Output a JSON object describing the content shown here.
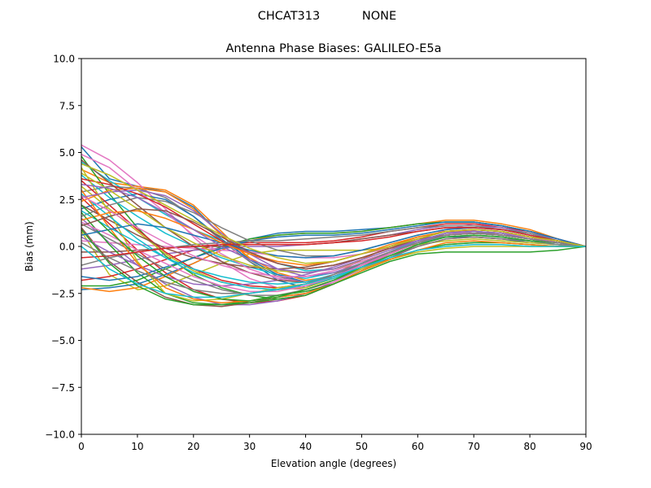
{
  "chart_data": {
    "type": "line",
    "suptitle_left": "CHCAT313",
    "suptitle_right": "NONE",
    "title": "Antenna Phase Biases: GALILEO-E5a",
    "xlabel": "Elevation angle (degrees)",
    "ylabel": "Bias (mm)",
    "xlim": [
      0,
      90
    ],
    "ylim": [
      -10,
      10
    ],
    "x_ticks": [
      "0",
      "10",
      "20",
      "30",
      "40",
      "50",
      "60",
      "70",
      "80",
      "90"
    ],
    "y_ticks": [
      "10.0",
      "7.5",
      "5.0",
      "2.5",
      "0.0",
      "−2.5",
      "−5.0",
      "−7.5",
      "−10.0"
    ],
    "grid": false,
    "legend": "none",
    "x": [
      0,
      5,
      10,
      15,
      20,
      25,
      30,
      35,
      40,
      45,
      50,
      55,
      60,
      65,
      70,
      75,
      80,
      85,
      90
    ],
    "series": [
      {
        "color": "#1f77b4",
        "values": [
          5.3,
          3.6,
          3.2,
          2.9,
          2.1,
          0.6,
          -0.8,
          -1.8,
          -2.2,
          -1.6,
          -0.9,
          -0.3,
          0.2,
          0.5,
          0.5,
          0.4,
          0.2,
          0.1,
          0.0
        ]
      },
      {
        "color": "#ff7f0e",
        "values": [
          4.1,
          3.4,
          3.2,
          3.0,
          2.2,
          0.8,
          -0.7,
          -1.5,
          -1.9,
          -1.5,
          -0.7,
          0.0,
          0.5,
          0.8,
          0.8,
          0.6,
          0.4,
          0.2,
          0.0
        ]
      },
      {
        "color": "#2ca02c",
        "values": [
          4.8,
          2.8,
          1.0,
          -0.5,
          -1.5,
          -2.2,
          -2.6,
          -2.8,
          -2.6,
          -2.0,
          -1.3,
          -0.7,
          -0.2,
          0.1,
          0.2,
          0.2,
          0.1,
          0.0,
          0.0
        ]
      },
      {
        "color": "#d62728",
        "values": [
          2.6,
          1.2,
          -0.2,
          -1.4,
          -2.3,
          -2.8,
          -3.0,
          -2.9,
          -2.6,
          -2.0,
          -1.3,
          -0.6,
          0.0,
          0.4,
          0.5,
          0.4,
          0.3,
          0.1,
          0.0
        ]
      },
      {
        "color": "#9467bd",
        "values": [
          1.5,
          0.2,
          -1.0,
          -2.0,
          -2.7,
          -3.1,
          -3.1,
          -2.9,
          -2.5,
          -1.9,
          -1.1,
          -0.4,
          0.2,
          0.6,
          0.7,
          0.6,
          0.4,
          0.2,
          0.0
        ]
      },
      {
        "color": "#8c564b",
        "values": [
          1.0,
          -0.8,
          -1.9,
          -2.7,
          -3.1,
          -3.2,
          -3.0,
          -2.7,
          -2.5,
          -2.0,
          -1.3,
          -0.6,
          0.1,
          0.6,
          0.8,
          0.7,
          0.5,
          0.2,
          0.0
        ]
      },
      {
        "color": "#e377c2",
        "values": [
          5.4,
          4.6,
          3.4,
          2.0,
          0.5,
          -0.8,
          -1.7,
          -2.2,
          -2.3,
          -1.9,
          -1.2,
          -0.4,
          0.3,
          0.9,
          1.2,
          1.1,
          0.8,
          0.4,
          0.0
        ]
      },
      {
        "color": "#7f7f7f",
        "values": [
          2.9,
          3.2,
          3.1,
          2.6,
          1.6,
          0.3,
          -0.8,
          -1.6,
          -1.9,
          -1.6,
          -1.0,
          -0.3,
          0.3,
          0.7,
          0.8,
          0.6,
          0.4,
          0.2,
          0.0
        ]
      },
      {
        "color": "#bcbd22",
        "values": [
          0.8,
          -1.5,
          -2.3,
          -2.1,
          -1.5,
          -0.9,
          -0.4,
          -0.2,
          -0.2,
          -0.2,
          -0.2,
          -0.1,
          0.1,
          0.3,
          0.4,
          0.3,
          0.2,
          0.1,
          0.0
        ]
      },
      {
        "color": "#17becf",
        "values": [
          4.5,
          3.5,
          2.6,
          1.7,
          0.9,
          0.3,
          -0.3,
          -0.9,
          -1.3,
          -1.2,
          -0.8,
          -0.3,
          0.2,
          0.5,
          0.6,
          0.5,
          0.3,
          0.1,
          0.0
        ]
      },
      {
        "color": "#1f77b4",
        "values": [
          -2.3,
          -2.2,
          -2.0,
          -1.5,
          -0.9,
          -0.2,
          0.4,
          0.7,
          0.8,
          0.8,
          0.9,
          1.0,
          1.2,
          1.3,
          1.3,
          1.1,
          0.8,
          0.4,
          0.0
        ]
      },
      {
        "color": "#ff7f0e",
        "values": [
          -2.2,
          -2.4,
          -2.2,
          -1.6,
          -0.9,
          -0.2,
          0.3,
          0.6,
          0.7,
          0.7,
          0.8,
          1.0,
          1.2,
          1.4,
          1.4,
          1.2,
          0.9,
          0.4,
          0.0
        ]
      },
      {
        "color": "#2ca02c",
        "values": [
          -2.1,
          -2.1,
          -1.8,
          -1.2,
          -0.6,
          0.0,
          0.4,
          0.6,
          0.7,
          0.7,
          0.8,
          1.0,
          1.2,
          1.3,
          1.3,
          1.1,
          0.8,
          0.4,
          0.0
        ]
      },
      {
        "color": "#d62728",
        "values": [
          -1.8,
          -1.6,
          -1.2,
          -0.7,
          -0.2,
          0.1,
          0.2,
          0.2,
          0.2,
          0.3,
          0.5,
          0.8,
          1.0,
          1.2,
          1.2,
          1.0,
          0.8,
          0.4,
          0.0
        ]
      },
      {
        "color": "#9467bd",
        "values": [
          -1.2,
          -1.0,
          -0.7,
          -0.4,
          -0.2,
          -0.1,
          0.0,
          0.0,
          0.1,
          0.2,
          0.4,
          0.6,
          0.9,
          1.1,
          1.1,
          1.0,
          0.7,
          0.4,
          0.0
        ]
      },
      {
        "color": "#8c564b",
        "values": [
          -0.3,
          -0.3,
          -0.2,
          -0.1,
          0.0,
          0.0,
          0.1,
          0.1,
          0.1,
          0.2,
          0.4,
          0.6,
          0.8,
          1.0,
          1.0,
          0.9,
          0.7,
          0.3,
          0.0
        ]
      },
      {
        "color": "#e377c2",
        "values": [
          0.3,
          0.2,
          0.1,
          0.0,
          -0.1,
          -0.2,
          -0.3,
          -0.5,
          -0.6,
          -0.6,
          -0.4,
          -0.1,
          0.3,
          0.6,
          0.7,
          0.6,
          0.4,
          0.2,
          0.0
        ]
      },
      {
        "color": "#7f7f7f",
        "values": [
          1.2,
          0.4,
          -0.4,
          -1.2,
          -1.8,
          -2.3,
          -2.6,
          -2.6,
          -2.3,
          -1.8,
          -1.2,
          -0.6,
          0.0,
          0.4,
          0.5,
          0.4,
          0.3,
          0.1,
          0.0
        ]
      },
      {
        "color": "#bcbd22",
        "values": [
          3.2,
          2.0,
          0.8,
          -0.4,
          -1.3,
          -1.9,
          -2.2,
          -2.3,
          -2.2,
          -1.7,
          -1.1,
          -0.5,
          0.1,
          0.5,
          0.6,
          0.5,
          0.3,
          0.2,
          0.0
        ]
      },
      {
        "color": "#17becf",
        "values": [
          3.8,
          2.6,
          1.6,
          0.7,
          0.0,
          -0.6,
          -1.1,
          -1.5,
          -1.7,
          -1.4,
          -0.9,
          -0.3,
          0.2,
          0.6,
          0.7,
          0.6,
          0.4,
          0.2,
          0.0
        ]
      },
      {
        "color": "#1f77b4",
        "values": [
          2.0,
          2.5,
          2.8,
          2.5,
          1.6,
          0.4,
          -0.7,
          -1.5,
          -1.9,
          -1.6,
          -1.0,
          -0.4,
          0.2,
          0.6,
          0.7,
          0.6,
          0.4,
          0.2,
          0.0
        ]
      },
      {
        "color": "#ff7f0e",
        "values": [
          2.4,
          3.0,
          3.1,
          2.9,
          2.0,
          0.6,
          -0.6,
          -1.4,
          -1.8,
          -1.6,
          -1.0,
          -0.4,
          0.2,
          0.6,
          0.7,
          0.6,
          0.4,
          0.2,
          0.0
        ]
      },
      {
        "color": "#2ca02c",
        "values": [
          1.8,
          0.1,
          -1.4,
          -2.5,
          -3.0,
          -3.1,
          -2.9,
          -2.6,
          -2.4,
          -2.0,
          -1.3,
          -0.7,
          -0.2,
          0.1,
          0.2,
          0.2,
          0.1,
          0.0,
          0.0
        ]
      },
      {
        "color": "#d62728",
        "values": [
          3.5,
          2.2,
          0.9,
          -0.3,
          -1.2,
          -1.8,
          -2.1,
          -2.2,
          -2.0,
          -1.6,
          -1.0,
          -0.4,
          0.2,
          0.6,
          0.7,
          0.6,
          0.4,
          0.2,
          0.0
        ]
      },
      {
        "color": "#9467bd",
        "values": [
          0.5,
          -0.3,
          -1.0,
          -1.6,
          -2.0,
          -2.1,
          -2.0,
          -1.8,
          -1.5,
          -1.1,
          -0.6,
          -0.1,
          0.3,
          0.6,
          0.7,
          0.6,
          0.4,
          0.2,
          0.0
        ]
      },
      {
        "color": "#8c564b",
        "values": [
          2.2,
          1.4,
          0.6,
          -0.1,
          -0.6,
          -0.9,
          -1.1,
          -1.2,
          -1.1,
          -0.8,
          -0.4,
          0.0,
          0.4,
          0.6,
          0.7,
          0.6,
          0.4,
          0.2,
          0.0
        ]
      },
      {
        "color": "#e377c2",
        "values": [
          4.9,
          4.2,
          3.0,
          1.8,
          0.6,
          -0.4,
          -1.2,
          -1.7,
          -1.9,
          -1.6,
          -1.0,
          -0.3,
          0.3,
          0.7,
          0.9,
          0.8,
          0.5,
          0.3,
          0.0
        ]
      },
      {
        "color": "#7f7f7f",
        "values": [
          1.6,
          2.2,
          2.6,
          2.4,
          1.8,
          1.0,
          0.3,
          -0.2,
          -0.5,
          -0.5,
          -0.2,
          0.2,
          0.6,
          0.9,
          1.0,
          0.9,
          0.6,
          0.3,
          0.0
        ]
      },
      {
        "color": "#bcbd22",
        "values": [
          4.2,
          1.8,
          -0.8,
          -2.5,
          -2.9,
          -2.8,
          -2.5,
          -2.2,
          -2.0,
          -1.7,
          -1.2,
          -0.7,
          -0.3,
          -0.1,
          0.0,
          0.0,
          0.0,
          0.0,
          0.0
        ]
      },
      {
        "color": "#17becf",
        "values": [
          2.8,
          1.6,
          0.4,
          -0.6,
          -1.4,
          -1.9,
          -2.2,
          -2.3,
          -2.1,
          -1.7,
          -1.1,
          -0.5,
          0.1,
          0.5,
          0.6,
          0.5,
          0.3,
          0.2,
          0.0
        ]
      },
      {
        "color": "#1f77b4",
        "values": [
          -1.6,
          -1.8,
          -1.6,
          -1.1,
          -0.6,
          -0.1,
          0.3,
          0.5,
          0.6,
          0.6,
          0.7,
          0.9,
          1.1,
          1.3,
          1.3,
          1.1,
          0.8,
          0.4,
          0.0
        ]
      },
      {
        "color": "#ff7f0e",
        "values": [
          3.0,
          1.0,
          -0.9,
          -2.2,
          -2.8,
          -3.0,
          -2.9,
          -2.7,
          -2.5,
          -2.0,
          -1.3,
          -0.7,
          -0.2,
          0.2,
          0.3,
          0.2,
          0.1,
          0.0,
          0.0
        ]
      },
      {
        "color": "#2ca02c",
        "values": [
          0.9,
          -0.9,
          -2.1,
          -2.8,
          -3.1,
          -3.1,
          -3.0,
          -2.8,
          -2.6,
          -2.0,
          -1.4,
          -0.8,
          -0.4,
          -0.3,
          -0.3,
          -0.3,
          -0.3,
          -0.2,
          0.0
        ]
      },
      {
        "color": "#d62728",
        "values": [
          3.6,
          3.3,
          2.8,
          2.1,
          1.2,
          0.3,
          -0.4,
          -0.9,
          -1.2,
          -1.0,
          -0.6,
          -0.1,
          0.4,
          0.8,
          0.9,
          0.8,
          0.5,
          0.3,
          0.0
        ]
      },
      {
        "color": "#9467bd",
        "values": [
          2.6,
          2.9,
          3.0,
          2.7,
          1.9,
          0.7,
          -0.4,
          -1.2,
          -1.6,
          -1.4,
          -0.9,
          -0.3,
          0.3,
          0.7,
          0.8,
          0.7,
          0.4,
          0.2,
          0.0
        ]
      },
      {
        "color": "#8c564b",
        "values": [
          4.6,
          3.4,
          2.2,
          1.0,
          0.0,
          -0.8,
          -1.4,
          -1.8,
          -1.9,
          -1.6,
          -1.0,
          -0.4,
          0.2,
          0.6,
          0.7,
          0.6,
          0.4,
          0.2,
          0.0
        ]
      },
      {
        "color": "#e377c2",
        "values": [
          1.3,
          0.6,
          -0.2,
          -0.9,
          -1.6,
          -2.1,
          -2.4,
          -2.4,
          -2.1,
          -1.6,
          -1.0,
          -0.4,
          0.2,
          0.6,
          0.8,
          0.7,
          0.5,
          0.2,
          0.0
        ]
      },
      {
        "color": "#7f7f7f",
        "values": [
          -1.0,
          -0.6,
          -0.3,
          -0.1,
          0.1,
          0.2,
          0.3,
          0.3,
          0.4,
          0.5,
          0.6,
          0.8,
          1.0,
          1.1,
          1.1,
          0.9,
          0.7,
          0.3,
          0.0
        ]
      },
      {
        "color": "#bcbd22",
        "values": [
          3.9,
          3.0,
          2.0,
          1.0,
          0.2,
          -0.5,
          -1.0,
          -1.3,
          -1.4,
          -1.2,
          -0.8,
          -0.3,
          0.2,
          0.6,
          0.7,
          0.6,
          0.4,
          0.2,
          0.0
        ]
      },
      {
        "color": "#17becf",
        "values": [
          1.9,
          1.0,
          0.2,
          -0.6,
          -1.2,
          -1.6,
          -1.9,
          -2.0,
          -1.9,
          -1.5,
          -0.9,
          -0.3,
          0.3,
          0.7,
          0.8,
          0.7,
          0.4,
          0.2,
          0.0
        ]
      },
      {
        "color": "#1f77b4",
        "values": [
          0.6,
          0.9,
          1.2,
          1.0,
          0.6,
          0.2,
          -0.2,
          -0.5,
          -0.6,
          -0.5,
          -0.2,
          0.2,
          0.6,
          0.9,
          1.0,
          0.9,
          0.6,
          0.3,
          0.0
        ]
      },
      {
        "color": "#ff7f0e",
        "values": [
          1.4,
          1.8,
          1.9,
          1.5,
          0.9,
          0.2,
          -0.4,
          -0.8,
          -1.0,
          -0.8,
          -0.4,
          0.1,
          0.5,
          0.8,
          0.9,
          0.8,
          0.5,
          0.3,
          0.0
        ]
      },
      {
        "color": "#2ca02c",
        "values": [
          2.2,
          0.8,
          -0.5,
          -1.6,
          -2.4,
          -2.8,
          -2.9,
          -2.7,
          -2.3,
          -1.8,
          -1.1,
          -0.5,
          0.1,
          0.5,
          0.6,
          0.5,
          0.3,
          0.2,
          0.0
        ]
      },
      {
        "color": "#d62728",
        "values": [
          -0.6,
          -0.5,
          -0.3,
          -0.1,
          0.0,
          0.1,
          0.1,
          0.1,
          0.1,
          0.2,
          0.3,
          0.5,
          0.8,
          1.0,
          1.0,
          0.9,
          0.6,
          0.3,
          0.0
        ]
      },
      {
        "color": "#9467bd",
        "values": [
          3.3,
          3.1,
          2.6,
          1.8,
          0.9,
          0.0,
          -0.7,
          -1.2,
          -1.4,
          -1.2,
          -0.7,
          -0.2,
          0.3,
          0.7,
          0.8,
          0.7,
          0.4,
          0.2,
          0.0
        ]
      },
      {
        "color": "#8c564b",
        "values": [
          1.1,
          1.6,
          2.0,
          1.9,
          1.3,
          0.5,
          -0.3,
          -0.9,
          -1.2,
          -1.0,
          -0.6,
          -0.1,
          0.4,
          0.8,
          0.9,
          0.8,
          0.5,
          0.3,
          0.0
        ]
      },
      {
        "color": "#e377c2",
        "values": [
          2.7,
          1.9,
          1.0,
          0.2,
          -0.5,
          -1.0,
          -1.4,
          -1.6,
          -1.6,
          -1.3,
          -0.8,
          -0.3,
          0.2,
          0.6,
          0.7,
          0.6,
          0.4,
          0.2,
          0.0
        ]
      },
      {
        "color": "#7f7f7f",
        "values": [
          0.2,
          -0.6,
          -1.3,
          -1.9,
          -2.3,
          -2.5,
          -2.5,
          -2.3,
          -2.0,
          -1.5,
          -0.9,
          -0.3,
          0.2,
          0.6,
          0.7,
          0.6,
          0.4,
          0.2,
          0.0
        ]
      },
      {
        "color": "#bcbd22",
        "values": [
          4.4,
          3.8,
          3.0,
          2.2,
          1.4,
          0.6,
          -0.1,
          -0.6,
          -0.9,
          -0.8,
          -0.4,
          0.0,
          0.4,
          0.8,
          0.9,
          0.8,
          0.5,
          0.3,
          0.0
        ]
      },
      {
        "color": "#17becf",
        "values": [
          0.0,
          -1.2,
          -2.0,
          -2.5,
          -2.7,
          -2.7,
          -2.5,
          -2.3,
          -2.0,
          -1.6,
          -1.1,
          -0.6,
          -0.2,
          0.0,
          0.1,
          0.1,
          0.0,
          0.0,
          0.0
        ]
      }
    ]
  }
}
